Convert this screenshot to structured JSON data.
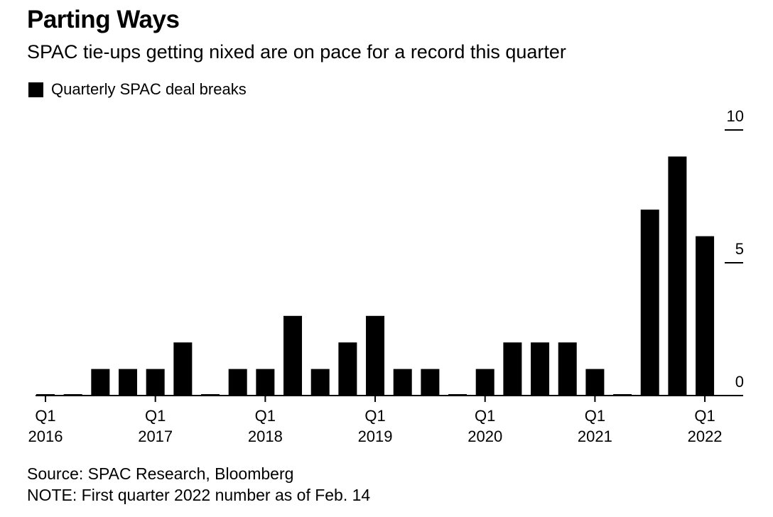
{
  "title": "Parting Ways",
  "subtitle": "SPAC tie-ups getting nixed are on pace for a record this quarter",
  "source": "Source: SPAC Research, Bloomberg",
  "note": "NOTE: First quarter 2022 number as of Feb. 14",
  "colors": {
    "bar": "#000000",
    "background": "#ffffff"
  },
  "chart_data": {
    "type": "bar",
    "title": "Parting Ways",
    "subtitle": "SPAC tie-ups getting nixed are on pace for a record this quarter",
    "legend": [
      {
        "name": "Quarterly SPAC deal breaks",
        "color": "#000000"
      }
    ],
    "categories": [
      "Q1 2016",
      "Q2 2016",
      "Q3 2016",
      "Q4 2016",
      "Q1 2017",
      "Q2 2017",
      "Q3 2017",
      "Q4 2017",
      "Q1 2018",
      "Q2 2018",
      "Q3 2018",
      "Q4 2018",
      "Q1 2019",
      "Q2 2019",
      "Q3 2019",
      "Q4 2019",
      "Q1 2020",
      "Q2 2020",
      "Q3 2020",
      "Q4 2020",
      "Q1 2021",
      "Q2 2021",
      "Q3 2021",
      "Q4 2021",
      "Q1 2022"
    ],
    "series": [
      {
        "name": "Quarterly SPAC deal breaks",
        "values": [
          0,
          0,
          1,
          1,
          1,
          2,
          0,
          1,
          1,
          3,
          1,
          2,
          3,
          1,
          1,
          0,
          1,
          2,
          2,
          2,
          1,
          0,
          7,
          9,
          6
        ]
      }
    ],
    "x_tick_labels": [
      {
        "index": 0,
        "quarter": "Q1",
        "year": "2016"
      },
      {
        "index": 4,
        "quarter": "Q1",
        "year": "2017"
      },
      {
        "index": 8,
        "quarter": "Q1",
        "year": "2018"
      },
      {
        "index": 12,
        "quarter": "Q1",
        "year": "2019"
      },
      {
        "index": 16,
        "quarter": "Q1",
        "year": "2020"
      },
      {
        "index": 20,
        "quarter": "Q1",
        "year": "2021"
      },
      {
        "index": 24,
        "quarter": "Q1",
        "year": "2022"
      }
    ],
    "y_ticks": [
      0,
      5,
      10
    ],
    "ylim": [
      0,
      10
    ],
    "xlabel": "",
    "ylabel": "",
    "grid": false,
    "y_axis_side": "right",
    "legend_position": "top-left"
  }
}
